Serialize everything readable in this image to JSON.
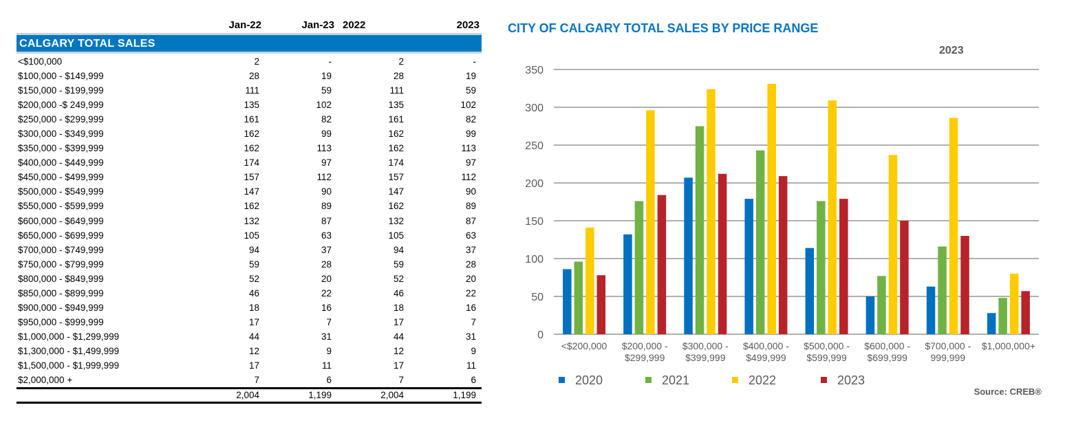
{
  "table": {
    "column_headers": [
      "Jan-22",
      "Jan-23",
      "2022",
      "2023"
    ],
    "section_title": "CALGARY TOTAL SALES",
    "rows": [
      {
        "range": "<$100,000",
        "values": [
          "2",
          "-",
          "2",
          "-"
        ]
      },
      {
        "range": "$100,000 - $149,999",
        "values": [
          "28",
          "19",
          "28",
          "19"
        ]
      },
      {
        "range": "$150,000 - $199,999",
        "values": [
          "111",
          "59",
          "111",
          "59"
        ]
      },
      {
        "range": "$200,000 -$ 249,999",
        "values": [
          "135",
          "102",
          "135",
          "102"
        ]
      },
      {
        "range": "$250,000 - $299,999",
        "values": [
          "161",
          "82",
          "161",
          "82"
        ]
      },
      {
        "range": "$300,000 - $349,999",
        "values": [
          "162",
          "99",
          "162",
          "99"
        ]
      },
      {
        "range": "$350,000 - $399,999",
        "values": [
          "162",
          "113",
          "162",
          "113"
        ]
      },
      {
        "range": "$400,000 - $449,999",
        "values": [
          "174",
          "97",
          "174",
          "97"
        ]
      },
      {
        "range": "$450,000 - $499,999",
        "values": [
          "157",
          "112",
          "157",
          "112"
        ]
      },
      {
        "range": "$500,000 - $549,999",
        "values": [
          "147",
          "90",
          "147",
          "90"
        ]
      },
      {
        "range": "$550,000 - $599,999",
        "values": [
          "162",
          "89",
          "162",
          "89"
        ]
      },
      {
        "range": "$600,000 - $649,999",
        "values": [
          "132",
          "87",
          "132",
          "87"
        ]
      },
      {
        "range": "$650,000 - $699,999",
        "values": [
          "105",
          "63",
          "105",
          "63"
        ]
      },
      {
        "range": "$700,000 - $749,999",
        "values": [
          "94",
          "37",
          "94",
          "37"
        ]
      },
      {
        "range": "$750,000 - $799,999",
        "values": [
          "59",
          "28",
          "59",
          "28"
        ]
      },
      {
        "range": "$800,000 - $849,999",
        "values": [
          "52",
          "20",
          "52",
          "20"
        ]
      },
      {
        "range": "$850,000 - $899,999",
        "values": [
          "46",
          "22",
          "46",
          "22"
        ]
      },
      {
        "range": "$900,000 - $949,999",
        "values": [
          "18",
          "16",
          "18",
          "16"
        ]
      },
      {
        "range": "$950,000 - $999,999",
        "values": [
          "17",
          "7",
          "17",
          "7"
        ]
      },
      {
        "range": "$1,000,000 - $1,299,999",
        "values": [
          "44",
          "31",
          "44",
          "31"
        ]
      },
      {
        "range": "$1,300,000 - $1,499,999",
        "values": [
          "12",
          "9",
          "12",
          "9"
        ]
      },
      {
        "range": "$1,500,000 - $1,999,999",
        "values": [
          "17",
          "11",
          "17",
          "11"
        ]
      },
      {
        "range": "$2,000,000 +",
        "values": [
          "7",
          "6",
          "7",
          "6"
        ]
      }
    ],
    "totals": [
      "2,004",
      "1,199",
      "2,004",
      "1,199"
    ],
    "header_color": "#0077c0"
  },
  "chart_data": {
    "type": "bar",
    "title": "CITY OF CALGARY TOTAL SALES BY PRICE RANGE",
    "subtitle": "2023",
    "xlabel": "",
    "ylabel": "",
    "categories": [
      [
        "<$200,000"
      ],
      [
        "$200,000 -",
        "$299,999"
      ],
      [
        "$300,000 -",
        "$399,999"
      ],
      [
        "$400,000 -",
        "$499,999"
      ],
      [
        "$500,000 -",
        "$599,999"
      ],
      [
        "$600,000 -",
        "$699,999"
      ],
      [
        "$700,000 -",
        "999,999"
      ],
      [
        "$1,000,000+"
      ]
    ],
    "series": [
      {
        "name": "2020",
        "color": "#0070c0",
        "values": [
          86,
          132,
          207,
          179,
          114,
          50,
          63,
          28
        ]
      },
      {
        "name": "2021",
        "color": "#70b244",
        "values": [
          96,
          176,
          275,
          243,
          176,
          77,
          116,
          48
        ]
      },
      {
        "name": "2022",
        "color": "#ffcc00",
        "values": [
          141,
          296,
          324,
          331,
          309,
          237,
          286,
          80
        ]
      },
      {
        "name": "2023",
        "color": "#b8232a",
        "values": [
          78,
          184,
          212,
          209,
          179,
          150,
          130,
          57
        ]
      }
    ],
    "ylim": [
      0,
      350
    ],
    "yticks": [
      0,
      50,
      100,
      150,
      200,
      250,
      300,
      350
    ],
    "grid": true,
    "legend_position": "bottom-left",
    "source": "Source: CREB®"
  }
}
